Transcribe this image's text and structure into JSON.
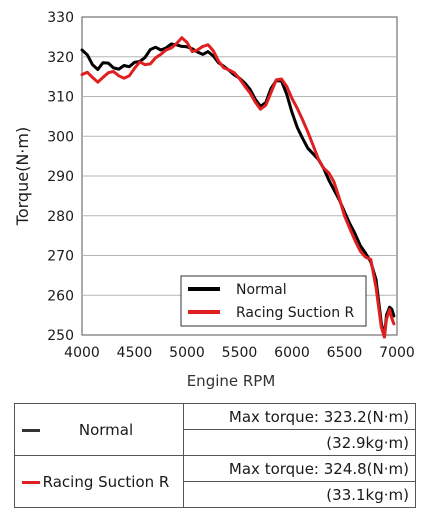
{
  "chart_data": {
    "type": "line",
    "xlabel": "Engine RPM",
    "ylabel": "Torque(N·m)",
    "xlim": [
      4000,
      7000
    ],
    "ylim": [
      250,
      330
    ],
    "xticks": [
      4000,
      4500,
      5000,
      5500,
      6000,
      6500,
      7000
    ],
    "yticks": [
      250,
      260,
      270,
      280,
      290,
      300,
      310,
      320,
      330
    ],
    "grid": "horizontal",
    "legend_position": "bottom-right",
    "series": [
      {
        "name": "Normal",
        "color": "#000000",
        "x": [
          4000,
          4050,
          4100,
          4150,
          4200,
          4250,
          4300,
          4350,
          4400,
          4450,
          4500,
          4550,
          4600,
          4650,
          4700,
          4750,
          4800,
          4850,
          4900,
          4950,
          5000,
          5050,
          5100,
          5150,
          5200,
          5250,
          5300,
          5350,
          5400,
          5450,
          5500,
          5550,
          5600,
          5650,
          5700,
          5750,
          5800,
          5850,
          5900,
          5950,
          6000,
          6050,
          6100,
          6150,
          6200,
          6250,
          6300,
          6350,
          6400,
          6450,
          6500,
          6550,
          6600,
          6650,
          6700,
          6750,
          6800,
          6850,
          6880,
          6900,
          6930,
          6950,
          6970
        ],
        "y": [
          321.7,
          320.5,
          318,
          316.8,
          318.5,
          318.4,
          317.2,
          316.9,
          317.8,
          317.5,
          318.6,
          318.8,
          319.8,
          321.8,
          322.4,
          321.7,
          322.2,
          323.2,
          323,
          322.6,
          322.5,
          322,
          321.2,
          320.6,
          321.3,
          320.2,
          318.5,
          317.6,
          316.6,
          315.4,
          314.6,
          313.4,
          311.8,
          309.3,
          307.5,
          308.5,
          312,
          314,
          313.9,
          310.5,
          306,
          302.2,
          299.5,
          297,
          295.6,
          294.2,
          292,
          289,
          286.5,
          284,
          281,
          278,
          275.5,
          272.5,
          270.6,
          268.4,
          264,
          253,
          249.5,
          255,
          257,
          256.5,
          254.8
        ]
      },
      {
        "name": "Racing Suction R",
        "color": "#e02020",
        "x": [
          4000,
          4050,
          4100,
          4150,
          4200,
          4250,
          4300,
          4350,
          4400,
          4450,
          4500,
          4550,
          4600,
          4650,
          4700,
          4750,
          4800,
          4850,
          4900,
          4950,
          5000,
          5050,
          5100,
          5150,
          5200,
          5250,
          5300,
          5350,
          5400,
          5450,
          5500,
          5550,
          5600,
          5650,
          5700,
          5750,
          5800,
          5850,
          5900,
          5950,
          6000,
          6050,
          6100,
          6150,
          6200,
          6250,
          6300,
          6350,
          6400,
          6450,
          6500,
          6550,
          6600,
          6650,
          6700,
          6750,
          6800,
          6850,
          6880,
          6900,
          6930,
          6950,
          6970
        ],
        "y": [
          315.5,
          316.1,
          314.8,
          313.6,
          314.8,
          316,
          316.3,
          315.2,
          314.6,
          315.2,
          317.1,
          318.7,
          318,
          318.2,
          319.7,
          320.6,
          321.7,
          322.2,
          323.3,
          324.8,
          323.6,
          321.3,
          321.7,
          322.6,
          323,
          321.5,
          318.9,
          317.2,
          316.7,
          316,
          314.5,
          312.6,
          310.9,
          308.6,
          306.8,
          307.8,
          311,
          314.2,
          314.4,
          312.5,
          309.5,
          307,
          304.2,
          301.1,
          297.8,
          294.3,
          292,
          290.8,
          288.5,
          284.4,
          280,
          276.8,
          273.8,
          271.1,
          269.6,
          269,
          262,
          252,
          249.5,
          254,
          256.4,
          254.2,
          252.8
        ]
      }
    ]
  },
  "table": {
    "rows": [
      {
        "name": "Normal",
        "max_torque": "Max torque: 323.2(N·m)",
        "kgm": "(32.9kg·m)",
        "color": "#333333"
      },
      {
        "name": "Racing Suction R",
        "max_torque": "Max torque: 324.8(N·m)",
        "kgm": "(33.1kg·m)",
        "color": "#e02020"
      }
    ]
  }
}
